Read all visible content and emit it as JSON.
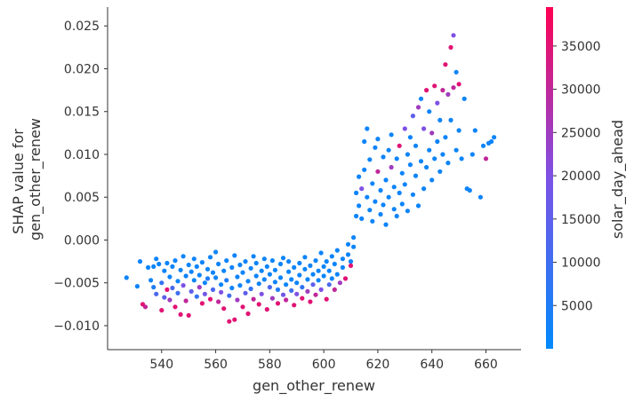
{
  "chart_data": {
    "type": "scatter",
    "title": "",
    "xlabel": "gen_other_renew",
    "ylabel": [
      "SHAP value for",
      "gen_other_renew"
    ],
    "xlim": [
      520,
      673
    ],
    "ylim": [
      -0.0128,
      0.0272
    ],
    "xticks": [
      540,
      560,
      580,
      600,
      620,
      640,
      660
    ],
    "xtick_labels": [
      "540",
      "560",
      "580",
      "600",
      "620",
      "640",
      "660"
    ],
    "yticks": [
      -0.01,
      -0.005,
      0.0,
      0.005,
      0.01,
      0.015,
      0.02,
      0.025
    ],
    "ytick_labels": [
      "−0.010",
      "−0.005",
      "0.000",
      "0.005",
      "0.010",
      "0.015",
      "0.020",
      "0.025"
    ],
    "grid": false,
    "colorbar": {
      "label": "solar_day_ahead",
      "range": [
        0,
        39500
      ],
      "ticks": [
        5000,
        10000,
        15000,
        20000,
        25000,
        30000,
        35000
      ],
      "tick_labels": [
        "5000",
        "10000",
        "15000",
        "20000",
        "25000",
        "30000",
        "35000"
      ],
      "colors": [
        "#008afb",
        "#7c52e6",
        "#ff0052"
      ]
    },
    "points": [
      [
        527,
        -0.0044,
        2000
      ],
      [
        531,
        -0.0054,
        2000
      ],
      [
        532,
        -0.0025,
        2000
      ],
      [
        533,
        -0.0075,
        35000
      ],
      [
        534,
        -0.0078,
        30000
      ],
      [
        535,
        -0.0032,
        2000
      ],
      [
        536,
        -0.0047,
        2000
      ],
      [
        537,
        -0.0055,
        5000
      ],
      [
        537,
        -0.0031,
        2000
      ],
      [
        538,
        -0.0063,
        12000
      ],
      [
        538,
        -0.0022,
        2000
      ],
      [
        539,
        -0.0028,
        2000
      ],
      [
        540,
        -0.0082,
        35000
      ],
      [
        540,
        -0.005,
        8000
      ],
      [
        541,
        -0.0036,
        2000
      ],
      [
        541,
        -0.0067,
        15000
      ],
      [
        542,
        -0.0058,
        35000
      ],
      [
        542,
        -0.0027,
        2000
      ],
      [
        543,
        -0.007,
        25000
      ],
      [
        543,
        -0.0043,
        2000
      ],
      [
        544,
        -0.0031,
        2000
      ],
      [
        544,
        -0.0056,
        12000
      ],
      [
        545,
        -0.0078,
        35000
      ],
      [
        545,
        -0.0024,
        2000
      ],
      [
        546,
        -0.0048,
        2000
      ],
      [
        546,
        -0.0062,
        10000
      ],
      [
        547,
        -0.0035,
        2000
      ],
      [
        547,
        -0.0087,
        35000
      ],
      [
        548,
        -0.0019,
        2000
      ],
      [
        548,
        -0.0053,
        20000
      ],
      [
        549,
        -0.0042,
        2000
      ],
      [
        549,
        -0.0071,
        30000
      ],
      [
        550,
        -0.0029,
        2000
      ],
      [
        550,
        -0.0088,
        35000
      ],
      [
        551,
        -0.006,
        15000
      ],
      [
        551,
        -0.0037,
        2000
      ],
      [
        552,
        -0.0022,
        2000
      ],
      [
        552,
        -0.0047,
        2000
      ],
      [
        553,
        -0.0066,
        8000
      ],
      [
        553,
        -0.0031,
        2000
      ],
      [
        554,
        -0.0055,
        25000
      ],
      [
        554,
        -0.0041,
        2000
      ],
      [
        555,
        -0.0074,
        35000
      ],
      [
        555,
        -0.0026,
        2000
      ],
      [
        556,
        -0.005,
        2000
      ],
      [
        556,
        -0.0063,
        18000
      ],
      [
        557,
        -0.0034,
        2000
      ],
      [
        557,
        -0.0045,
        5000
      ],
      [
        558,
        -0.002,
        2000
      ],
      [
        558,
        -0.0069,
        35000
      ],
      [
        559,
        -0.0038,
        2000
      ],
      [
        559,
        -0.0058,
        12000
      ],
      [
        560,
        -0.0014,
        2000
      ],
      [
        560,
        -0.0044,
        2000
      ],
      [
        561,
        -0.0072,
        30000
      ],
      [
        561,
        -0.0028,
        2000
      ],
      [
        562,
        -0.0052,
        2000
      ],
      [
        562,
        -0.0061,
        20000
      ],
      [
        563,
        -0.0036,
        2000
      ],
      [
        563,
        -0.008,
        35000
      ],
      [
        564,
        -0.0024,
        2000
      ],
      [
        564,
        -0.0047,
        5000
      ],
      [
        565,
        -0.0095,
        35000
      ],
      [
        565,
        -0.0065,
        10000
      ],
      [
        566,
        -0.0032,
        2000
      ],
      [
        566,
        -0.0056,
        2000
      ],
      [
        567,
        -0.0018,
        2000
      ],
      [
        567,
        -0.0093,
        35000
      ],
      [
        568,
        -0.0043,
        2000
      ],
      [
        568,
        -0.007,
        25000
      ],
      [
        569,
        -0.0029,
        2000
      ],
      [
        569,
        -0.0053,
        2000
      ],
      [
        570,
        -0.0078,
        35000
      ],
      [
        570,
        -0.0038,
        2000
      ],
      [
        571,
        -0.0062,
        15000
      ],
      [
        571,
        -0.0025,
        2000
      ],
      [
        572,
        -0.0048,
        2000
      ],
      [
        572,
        -0.0086,
        35000
      ],
      [
        573,
        -0.0033,
        2000
      ],
      [
        573,
        -0.0057,
        8000
      ],
      [
        574,
        -0.0019,
        2000
      ],
      [
        574,
        -0.0069,
        30000
      ],
      [
        575,
        -0.0042,
        2000
      ],
      [
        575,
        -0.0027,
        2000
      ],
      [
        576,
        -0.0075,
        35000
      ],
      [
        576,
        -0.0051,
        2000
      ],
      [
        577,
        -0.0036,
        2000
      ],
      [
        577,
        -0.0063,
        20000
      ],
      [
        578,
        -0.0022,
        2000
      ],
      [
        578,
        -0.0046,
        2000
      ],
      [
        579,
        -0.0081,
        35000
      ],
      [
        579,
        -0.0031,
        2000
      ],
      [
        580,
        -0.0055,
        12000
      ],
      [
        580,
        -0.004,
        2000
      ],
      [
        581,
        -0.0068,
        25000
      ],
      [
        581,
        -0.0024,
        2000
      ],
      [
        582,
        -0.0049,
        2000
      ],
      [
        582,
        -0.0035,
        2000
      ],
      [
        583,
        -0.0074,
        35000
      ],
      [
        583,
        -0.0058,
        5000
      ],
      [
        584,
        -0.0028,
        2000
      ],
      [
        584,
        -0.0044,
        2000
      ],
      [
        585,
        -0.0064,
        18000
      ],
      [
        585,
        -0.0021,
        2000
      ],
      [
        586,
        -0.0052,
        2000
      ],
      [
        586,
        -0.007,
        30000
      ],
      [
        587,
        -0.0037,
        2000
      ],
      [
        587,
        -0.0025,
        2000
      ],
      [
        588,
        -0.0059,
        10000
      ],
      [
        588,
        -0.0046,
        2000
      ],
      [
        589,
        -0.0076,
        35000
      ],
      [
        589,
        -0.0032,
        2000
      ],
      [
        590,
        -0.005,
        2000
      ],
      [
        590,
        -0.0063,
        20000
      ],
      [
        591,
        -0.0027,
        2000
      ],
      [
        591,
        -0.0041,
        2000
      ],
      [
        592,
        -0.0068,
        35000
      ],
      [
        592,
        -0.0055,
        8000
      ],
      [
        593,
        -0.0034,
        2000
      ],
      [
        593,
        -0.002,
        2000
      ],
      [
        594,
        -0.006,
        25000
      ],
      [
        594,
        -0.0046,
        2000
      ],
      [
        595,
        -0.003,
        2000
      ],
      [
        595,
        -0.0072,
        35000
      ],
      [
        596,
        -0.004,
        2000
      ],
      [
        596,
        -0.0052,
        15000
      ],
      [
        597,
        -0.0024,
        2000
      ],
      [
        597,
        -0.0064,
        30000
      ],
      [
        598,
        -0.0036,
        2000
      ],
      [
        598,
        -0.0047,
        2000
      ],
      [
        599,
        -0.0015,
        2000
      ],
      [
        599,
        -0.0058,
        20000
      ],
      [
        600,
        -0.0031,
        2000
      ],
      [
        600,
        -0.0042,
        2000
      ],
      [
        601,
        -0.0069,
        35000
      ],
      [
        601,
        -0.0025,
        2000
      ],
      [
        602,
        -0.0052,
        12000
      ],
      [
        602,
        -0.0036,
        2000
      ],
      [
        603,
        -0.0019,
        2000
      ],
      [
        603,
        -0.0045,
        2000
      ],
      [
        604,
        -0.0058,
        30000
      ],
      [
        604,
        -0.0028,
        2000
      ],
      [
        605,
        -0.0012,
        2000
      ],
      [
        605,
        -0.004,
        2000
      ],
      [
        606,
        -0.005,
        25000
      ],
      [
        607,
        -0.0022,
        2000
      ],
      [
        607,
        -0.0032,
        2000
      ],
      [
        608,
        -0.0045,
        35000
      ],
      [
        609,
        -0.0017,
        2000
      ],
      [
        609,
        -0.0005,
        2000
      ],
      [
        610,
        -0.0025,
        2000
      ],
      [
        610,
        -0.003,
        35000
      ],
      [
        611,
        0.0003,
        2000
      ],
      [
        611,
        -0.0008,
        2000
      ],
      [
        612,
        0.0055,
        2000
      ],
      [
        612,
        0.0028,
        2000
      ],
      [
        613,
        0.0074,
        2000
      ],
      [
        613,
        0.004,
        2000
      ],
      [
        614,
        0.006,
        20000
      ],
      [
        614,
        0.0025,
        2000
      ],
      [
        615,
        0.0115,
        2000
      ],
      [
        615,
        0.0082,
        2000
      ],
      [
        616,
        0.005,
        2000
      ],
      [
        616,
        0.013,
        2000
      ],
      [
        617,
        0.0035,
        2000
      ],
      [
        617,
        0.0094,
        2000
      ],
      [
        618,
        0.0066,
        2000
      ],
      [
        618,
        0.0022,
        2000
      ],
      [
        619,
        0.0108,
        2000
      ],
      [
        619,
        0.0045,
        2000
      ],
      [
        620,
        0.008,
        30000
      ],
      [
        620,
        0.0118,
        2000
      ],
      [
        621,
        0.003,
        2000
      ],
      [
        621,
        0.0058,
        2000
      ],
      [
        622,
        0.0097,
        2000
      ],
      [
        622,
        0.0041,
        2000
      ],
      [
        623,
        0.007,
        2000
      ],
      [
        623,
        0.0018,
        2000
      ],
      [
        624,
        0.0105,
        2000
      ],
      [
        624,
        0.005,
        2000
      ],
      [
        625,
        0.0123,
        2000
      ],
      [
        625,
        0.0085,
        25000
      ],
      [
        626,
        0.0036,
        2000
      ],
      [
        626,
        0.0062,
        2000
      ],
      [
        627,
        0.0095,
        2000
      ],
      [
        627,
        0.0028,
        2000
      ],
      [
        628,
        0.011,
        35000
      ],
      [
        628,
        0.0055,
        2000
      ],
      [
        629,
        0.0078,
        2000
      ],
      [
        629,
        0.0042,
        2000
      ],
      [
        630,
        0.013,
        20000
      ],
      [
        630,
        0.0065,
        2000
      ],
      [
        631,
        0.01,
        2000
      ],
      [
        631,
        0.0034,
        2000
      ],
      [
        632,
        0.0088,
        2000
      ],
      [
        632,
        0.012,
        2000
      ],
      [
        633,
        0.0145,
        15000
      ],
      [
        633,
        0.0053,
        2000
      ],
      [
        634,
        0.0075,
        2000
      ],
      [
        634,
        0.011,
        2000
      ],
      [
        635,
        0.0155,
        25000
      ],
      [
        635,
        0.004,
        2000
      ],
      [
        636,
        0.0165,
        2000
      ],
      [
        636,
        0.0092,
        2000
      ],
      [
        637,
        0.013,
        20000
      ],
      [
        637,
        0.006,
        2000
      ],
      [
        638,
        0.0175,
        35000
      ],
      [
        638,
        0.0085,
        2000
      ],
      [
        639,
        0.015,
        2000
      ],
      [
        639,
        0.0105,
        2000
      ],
      [
        640,
        0.007,
        2000
      ],
      [
        640,
        0.0125,
        25000
      ],
      [
        641,
        0.018,
        35000
      ],
      [
        641,
        0.0095,
        2000
      ],
      [
        642,
        0.016,
        20000
      ],
      [
        642,
        0.0115,
        2000
      ],
      [
        643,
        0.008,
        2000
      ],
      [
        643,
        0.014,
        2000
      ],
      [
        644,
        0.0175,
        30000
      ],
      [
        644,
        0.01,
        2000
      ],
      [
        645,
        0.0205,
        35000
      ],
      [
        645,
        0.012,
        2000
      ],
      [
        646,
        0.017,
        25000
      ],
      [
        646,
        0.009,
        2000
      ],
      [
        647,
        0.0225,
        35000
      ],
      [
        647,
        0.014,
        2000
      ],
      [
        648,
        0.0239,
        20000
      ],
      [
        648,
        0.0178,
        30000
      ],
      [
        649,
        0.0196,
        2000
      ],
      [
        649,
        0.0105,
        2000
      ],
      [
        650,
        0.0182,
        35000
      ],
      [
        650,
        0.0128,
        2000
      ],
      [
        651,
        0.0095,
        2000
      ],
      [
        652,
        0.0165,
        2000
      ],
      [
        653,
        0.006,
        2000
      ],
      [
        654,
        0.0058,
        2000
      ],
      [
        655,
        0.01,
        2000
      ],
      [
        656,
        0.0128,
        2000
      ],
      [
        658,
        0.005,
        2000
      ],
      [
        659,
        0.011,
        2000
      ],
      [
        660,
        0.0095,
        30000
      ],
      [
        661,
        0.0113,
        2000
      ],
      [
        662,
        0.0115,
        2000
      ],
      [
        663,
        0.012,
        2000
      ]
    ]
  }
}
